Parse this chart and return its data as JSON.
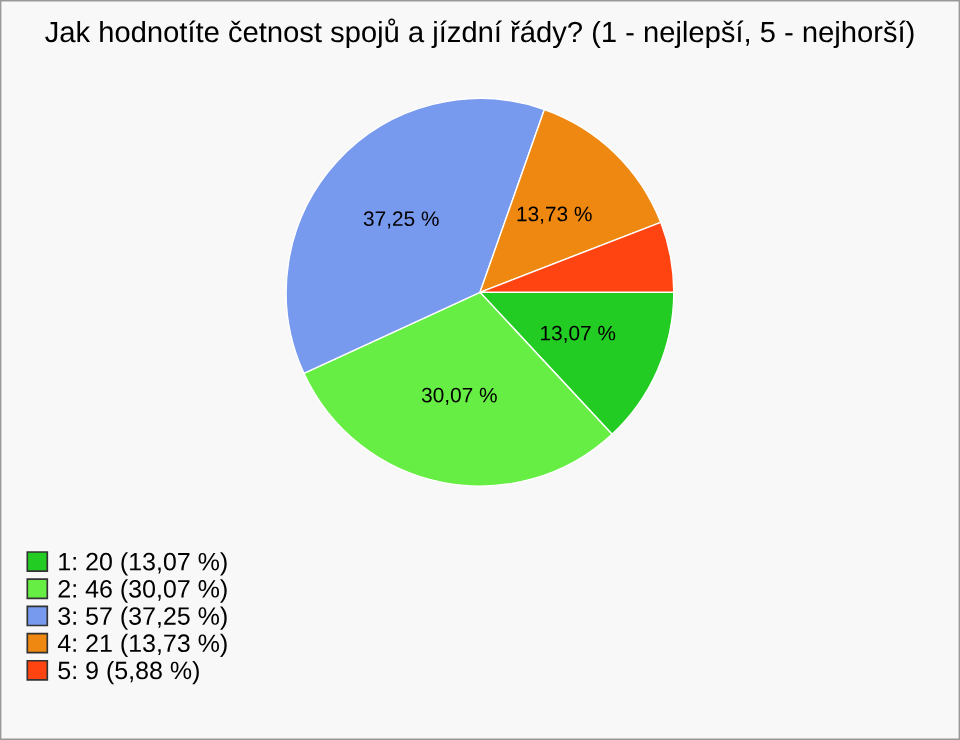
{
  "chart_data": {
    "type": "pie",
    "title": "Jak hodnotíte četnost spojů a jízdní řády? (1 - nejlepší, 5 - nejhorší)",
    "categories": [
      "1: 20 (13,07 %)",
      "2: 46 (30,07 %)",
      "3: 57 (37,25 %)",
      "4: 21 (13,73 %)",
      "5: 9 (5,88 %)"
    ],
    "values": [
      13.07,
      30.07,
      37.25,
      13.73,
      5.88
    ],
    "value_labels": [
      "13,07 %",
      "30,07 %",
      "37,25 %",
      "13,73 %",
      null
    ],
    "colors": [
      "#22cc22",
      "#66ee44",
      "#7799ee",
      "#ee8811",
      "#ff4411"
    ],
    "legend": "bottom left"
  }
}
